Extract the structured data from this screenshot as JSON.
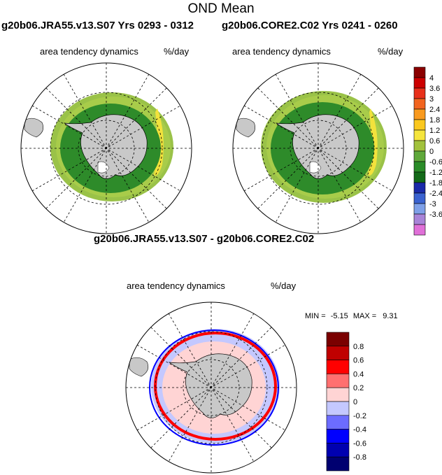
{
  "figure": {
    "title": "OND Mean"
  },
  "panels": [
    {
      "id": "jra55",
      "title": "g20b06.JRA55.v13.S07  Yrs 0293 - 0312",
      "left_label": "area tendency dynamics",
      "right_label": "%/day"
    },
    {
      "id": "core2",
      "title": "g20b06.CORE2.C02  Yrs 0241 - 0260",
      "left_label": "area tendency dynamics",
      "right_label": "%/day"
    },
    {
      "id": "diff",
      "title": "g20b06.JRA55.v13.S07 - g20b06.CORE2.C02",
      "left_label": "area tendency dynamics",
      "right_label": "%/day"
    }
  ],
  "diff_stats": {
    "min_label": "MIN =",
    "min_value": "-5.15",
    "max_label": "MAX =",
    "max_value": "9.31"
  },
  "colorbar_top": {
    "labels": [
      "4",
      "3.6",
      "3",
      "2.4",
      "1.8",
      "1.2",
      "0.6",
      "0",
      "-0.6",
      "-1.2",
      "-1.8",
      "-2.4",
      "-3",
      "-3.6"
    ],
    "colors": [
      "#8b0000",
      "#cc0000",
      "#e8301a",
      "#f2641e",
      "#f99a1e",
      "#fbc81e",
      "#f5e53c",
      "#a2c23c",
      "#5fa83a",
      "#2a8c28",
      "#136a18",
      "#1a2aa8",
      "#3a62d0",
      "#7ea0e8",
      "#a884d8",
      "#e070d8"
    ]
  },
  "colorbar_diff": {
    "labels": [
      "0.8",
      "0.6",
      "0.4",
      "0.2",
      "0",
      "-0.2",
      "-0.4",
      "-0.6",
      "-0.8"
    ],
    "colors": [
      "#7a0000",
      "#c00000",
      "#ff0000",
      "#ff7070",
      "#ffd4d4",
      "#c4c8ff",
      "#6c6cff",
      "#0000ff",
      "#0000b0",
      "#000070"
    ]
  },
  "colors": {
    "land": "#c8c8c8",
    "ice_top": "#2e8b2a",
    "ice_top_edge": "#9ac248",
    "ice_top_yellow": "#f2e23c"
  }
}
